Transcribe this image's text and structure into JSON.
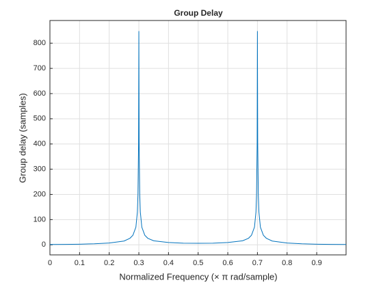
{
  "chart_data": {
    "type": "line",
    "title": "Group Delay",
    "xlabel": "Normalized  Frequency    (× π  rad/sample)",
    "ylabel": "Group delay (samples)",
    "x": [
      0,
      0.05,
      0.1,
      0.15,
      0.2,
      0.25,
      0.27,
      0.28,
      0.29,
      0.295,
      0.297,
      0.299,
      0.3,
      0.301,
      0.303,
      0.305,
      0.31,
      0.32,
      0.33,
      0.35,
      0.4,
      0.45,
      0.5,
      0.55,
      0.6,
      0.65,
      0.67,
      0.68,
      0.69,
      0.695,
      0.697,
      0.699,
      0.7,
      0.701,
      0.703,
      0.705,
      0.71,
      0.72,
      0.73,
      0.75,
      0.8,
      0.85,
      0.9,
      0.95,
      0.999
    ],
    "series": [
      {
        "color": "#0072bd",
        "values": [
          1.5,
          1.8,
          2.5,
          4,
          7,
          15,
          26,
          38,
          70,
          130,
          200,
          400,
          848,
          400,
          200,
          130,
          70,
          38,
          26,
          16,
          9,
          6.5,
          6,
          6.5,
          9,
          16,
          26,
          38,
          70,
          130,
          200,
          400,
          848,
          400,
          200,
          130,
          70,
          38,
          26,
          15,
          7,
          4,
          2.5,
          1.8,
          1.5
        ]
      }
    ],
    "xlim": [
      0,
      0.999
    ],
    "ylim": [
      -40,
      890
    ],
    "xticks": [
      0,
      0.1,
      0.2,
      0.3,
      0.4,
      0.5,
      0.6,
      0.7,
      0.8,
      0.9
    ],
    "yticks": [
      0,
      100,
      200,
      300,
      400,
      500,
      600,
      700,
      800
    ],
    "grid": true
  }
}
